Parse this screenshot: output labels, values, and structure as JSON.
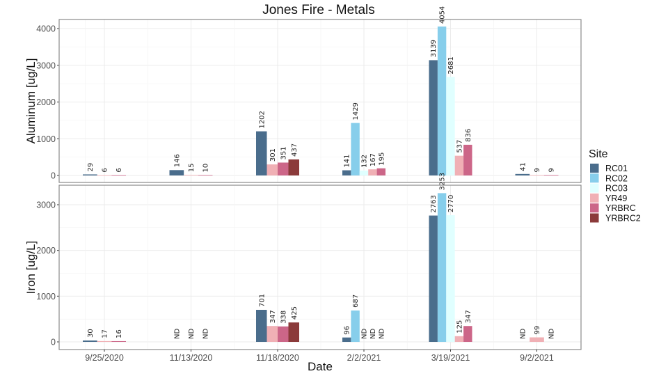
{
  "chart_data": {
    "type": "bar",
    "title": "Jones Fire - Metals",
    "xlabel": "Date",
    "categories": [
      "9/25/2020",
      "11/13/2020",
      "11/18/2020",
      "2/2/2021",
      "3/19/2021",
      "9/2/2021"
    ],
    "legend": {
      "title": "Site",
      "position": "right",
      "entries": [
        {
          "name": "RC01",
          "color": "#4a6d8c"
        },
        {
          "name": "RC02",
          "color": "#87ceeb"
        },
        {
          "name": "RC03",
          "color": "#e0ffff"
        },
        {
          "name": "YR49",
          "color": "#f0b0b5"
        },
        {
          "name": "YRBRC",
          "color": "#cc6688"
        },
        {
          "name": "YRBRC2",
          "color": "#8b3a3a"
        }
      ]
    },
    "grid": true,
    "panels": [
      {
        "ylabel": "Aluminum [ug/L]",
        "ylim": [
          0,
          4000
        ],
        "yticks": [
          0,
          1000,
          2000,
          3000,
          4000
        ],
        "groups": [
          {
            "category": "9/25/2020",
            "bars": [
              {
                "site": "RC01",
                "value": 29,
                "label": "29"
              },
              {
                "site": "YR49",
                "value": 6,
                "label": "6"
              },
              {
                "site": "YRBRC",
                "value": 6,
                "label": "6"
              }
            ]
          },
          {
            "category": "11/13/2020",
            "bars": [
              {
                "site": "RC01",
                "value": 146,
                "label": "146"
              },
              {
                "site": "YR49",
                "value": 15,
                "label": "15"
              },
              {
                "site": "YRBRC",
                "value": 10,
                "label": "10"
              }
            ]
          },
          {
            "category": "11/18/2020",
            "bars": [
              {
                "site": "RC01",
                "value": 1202,
                "label": "1202"
              },
              {
                "site": "YR49",
                "value": 301,
                "label": "301"
              },
              {
                "site": "YRBRC",
                "value": 351,
                "label": "351"
              },
              {
                "site": "YRBRC2",
                "value": 437,
                "label": "437"
              }
            ]
          },
          {
            "category": "2/2/2021",
            "bars": [
              {
                "site": "RC01",
                "value": 141,
                "label": "141"
              },
              {
                "site": "RC02",
                "value": 1429,
                "label": "1429"
              },
              {
                "site": "RC03",
                "value": 132,
                "label": "132"
              },
              {
                "site": "YR49",
                "value": 167,
                "label": "167"
              },
              {
                "site": "YRBRC",
                "value": 195,
                "label": "195"
              }
            ]
          },
          {
            "category": "3/19/2021",
            "bars": [
              {
                "site": "RC01",
                "value": 3139,
                "label": "3139"
              },
              {
                "site": "RC02",
                "value": 4054,
                "label": "4054"
              },
              {
                "site": "RC03",
                "value": 2681,
                "label": "2681"
              },
              {
                "site": "YR49",
                "value": 537,
                "label": "537"
              },
              {
                "site": "YRBRC",
                "value": 836,
                "label": "836"
              }
            ]
          },
          {
            "category": "9/2/2021",
            "bars": [
              {
                "site": "RC01",
                "value": 41,
                "label": "41"
              },
              {
                "site": "YR49",
                "value": 9,
                "label": "9"
              },
              {
                "site": "YRBRC",
                "value": 9,
                "label": "9"
              }
            ]
          }
        ]
      },
      {
        "ylabel": "Iron [ug/L]",
        "ylim": [
          0,
          3300
        ],
        "yticks": [
          0,
          1000,
          2000,
          3000
        ],
        "groups": [
          {
            "category": "9/25/2020",
            "bars": [
              {
                "site": "RC01",
                "value": 30,
                "label": "30"
              },
              {
                "site": "YR49",
                "value": 17,
                "label": "17"
              },
              {
                "site": "YRBRC",
                "value": 16,
                "label": "16"
              }
            ]
          },
          {
            "category": "11/13/2020",
            "bars": [
              {
                "site": "RC01",
                "value": 0,
                "label": "ND"
              },
              {
                "site": "YR49",
                "value": 0,
                "label": "ND"
              },
              {
                "site": "YRBRC",
                "value": 0,
                "label": "ND"
              }
            ]
          },
          {
            "category": "11/18/2020",
            "bars": [
              {
                "site": "RC01",
                "value": 701,
                "label": "701"
              },
              {
                "site": "YR49",
                "value": 347,
                "label": "347"
              },
              {
                "site": "YRBRC",
                "value": 338,
                "label": "338"
              },
              {
                "site": "YRBRC2",
                "value": 425,
                "label": "425"
              }
            ]
          },
          {
            "category": "2/2/2021",
            "bars": [
              {
                "site": "RC01",
                "value": 96,
                "label": "96"
              },
              {
                "site": "RC02",
                "value": 687,
                "label": "687"
              },
              {
                "site": "RC03",
                "value": 0,
                "label": "ND"
              },
              {
                "site": "YR49",
                "value": 0,
                "label": "ND"
              },
              {
                "site": "YRBRC",
                "value": 0,
                "label": "ND"
              }
            ]
          },
          {
            "category": "3/19/2021",
            "bars": [
              {
                "site": "RC01",
                "value": 2763,
                "label": "2763"
              },
              {
                "site": "RC02",
                "value": 3253,
                "label": "3253"
              },
              {
                "site": "RC03",
                "value": 2770,
                "label": "2770"
              },
              {
                "site": "YR49",
                "value": 125,
                "label": "125"
              },
              {
                "site": "YRBRC",
                "value": 347,
                "label": "347"
              }
            ]
          },
          {
            "category": "9/2/2021",
            "bars": [
              {
                "site": "RC01",
                "value": 0,
                "label": "ND"
              },
              {
                "site": "YR49",
                "value": 99,
                "label": "99"
              },
              {
                "site": "YRBRC",
                "value": 0,
                "label": "ND"
              }
            ]
          }
        ]
      }
    ]
  }
}
